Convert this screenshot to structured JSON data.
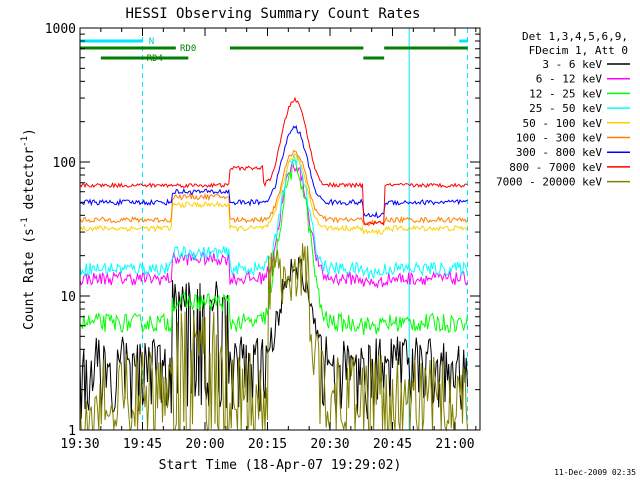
{
  "chart_data": {
    "type": "line",
    "title": "HESSI Observing Summary Count Rates",
    "xlabel": "Start Time (18-Apr-07 19:29:02)",
    "ylabel_main": "Count Rate (s",
    "ylabel_sup1": "-1",
    "ylabel_mid": " detector",
    "ylabel_sup2": "-1",
    "ylabel_end": ")",
    "timestamp": "11-Dec-2009 02:35",
    "x_unit": "minutes since 19:30",
    "xlim": [
      0,
      96
    ],
    "ylim": [
      1,
      1000
    ],
    "yscale": "log",
    "x_ticks": [
      {
        "x": 0,
        "label": "19:30"
      },
      {
        "x": 15,
        "label": "19:45"
      },
      {
        "x": 30,
        "label": "20:00"
      },
      {
        "x": 45,
        "label": "20:15"
      },
      {
        "x": 60,
        "label": "20:30"
      },
      {
        "x": 75,
        "label": "20:45"
      },
      {
        "x": 90,
        "label": "21:00"
      }
    ],
    "y_ticks": [
      {
        "y": 1,
        "label": "1"
      },
      {
        "y": 10,
        "label": "10"
      },
      {
        "y": 100,
        "label": "100"
      },
      {
        "y": 1000,
        "label": "1000"
      }
    ],
    "legend_header": [
      "Det 1,3,4,5,6,9,",
      "FDecim 1, Att 0"
    ],
    "legend_position": "top-right",
    "markers": {
      "night_label": "N",
      "rd0_label": "RD0",
      "rd4_label": "RD4",
      "cyan_solid_x": [
        0,
        79
      ],
      "cyan_dashed_x": [
        15,
        93
      ],
      "night_bar": [
        [
          0,
          15
        ],
        [
          91,
          93
        ]
      ],
      "rd0_bar": [
        [
          0,
          23
        ],
        [
          36,
          68
        ],
        [
          73,
          93
        ]
      ],
      "rd4_bar": [
        [
          5,
          26
        ],
        [
          68,
          73
        ]
      ]
    },
    "series": [
      {
        "name": "3 - 6 keV",
        "color": "#000000",
        "base": 3.8,
        "seg": [
          [
            0,
            15,
            3.8
          ],
          [
            22,
            36,
            10
          ],
          [
            68,
            93,
            3.8
          ]
        ],
        "peak": 18,
        "noise": 0.12,
        "floor": 2
      },
      {
        "name": "6 - 12 keV",
        "color": "#ff00ff",
        "base": 13.5,
        "seg": [
          [
            22,
            36,
            19
          ],
          [
            68,
            73,
            12.5
          ]
        ],
        "peak": 95,
        "noise": 0.05
      },
      {
        "name": "12 - 25 keV",
        "color": "#00ff00",
        "base": 6.3,
        "seg": [
          [
            22,
            36,
            9
          ],
          [
            68,
            73,
            6
          ]
        ],
        "peak": 90,
        "noise": 0.07
      },
      {
        "name": "25 - 50 keV",
        "color": "#00ffff",
        "base": 16,
        "seg": [
          [
            22,
            36,
            21
          ],
          [
            68,
            73,
            15
          ]
        ],
        "peak": 105,
        "noise": 0.05
      },
      {
        "name": "50 - 100 keV",
        "color": "#ffd000",
        "base": 32,
        "seg": [
          [
            22,
            36,
            48
          ],
          [
            68,
            73,
            30
          ]
        ],
        "peak": 110,
        "noise": 0.02
      },
      {
        "name": "100 - 300 keV",
        "color": "#ff8000",
        "base": 37,
        "seg": [
          [
            22,
            36,
            55
          ],
          [
            68,
            73,
            35
          ]
        ],
        "peak": 120,
        "noise": 0.02
      },
      {
        "name": "300 - 800 keV",
        "color": "#0000ff",
        "base": 50,
        "seg": [
          [
            22,
            36,
            60
          ],
          [
            68,
            73,
            40
          ]
        ],
        "peak": 180,
        "noise": 0.02
      },
      {
        "name": "800 - 7000 keV",
        "color": "#ff0000",
        "base": 67,
        "seg": [
          [
            36,
            44,
            90
          ],
          [
            68,
            73,
            35
          ]
        ],
        "peak": 290,
        "noise": 0.015
      },
      {
        "name": "7000 - 20000 keV",
        "color": "#808000",
        "base": 2.2,
        "seg": [
          [
            22,
            36,
            4.5
          ],
          [
            45,
            55,
            14
          ],
          [
            68,
            93,
            2.1
          ]
        ],
        "peak": 16,
        "noise": 0.25,
        "floor": 1
      }
    ]
  }
}
